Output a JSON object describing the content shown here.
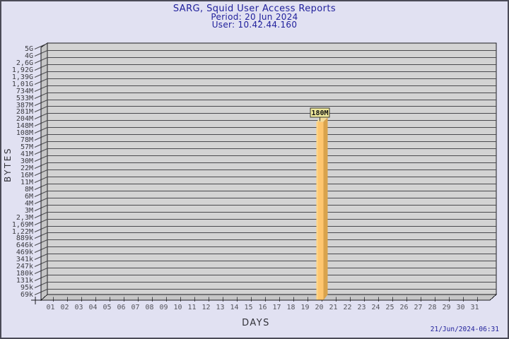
{
  "window": {
    "background": "#e1e1f2",
    "border_color": "#4b4b57"
  },
  "header": {
    "title": "SARG, Squid User Access Reports",
    "period": "Period: 20 Jun 2024",
    "user": "User: 10.42.44.160"
  },
  "footer": {
    "timestamp": "21/Jun/2024-06:31"
  },
  "chart_data": {
    "type": "bar",
    "title": "SARG, Squid User Access Reports",
    "subtitle": [
      "Period: 20 Jun 2024",
      "User: 10.42.44.160"
    ],
    "xlabel": "DAYS",
    "ylabel": "BYTES",
    "y_scale": "log",
    "grid": "horizontal",
    "legend": "none",
    "x_categories": [
      "01",
      "02",
      "03",
      "04",
      "05",
      "06",
      "07",
      "08",
      "09",
      "10",
      "11",
      "12",
      "13",
      "14",
      "15",
      "16",
      "17",
      "18",
      "19",
      "20",
      "21",
      "22",
      "23",
      "24",
      "25",
      "26",
      "27",
      "28",
      "29",
      "30",
      "31"
    ],
    "y_tick_labels": [
      "5G",
      "4G",
      "2,6G",
      "1,92G",
      "1,39G",
      "1,01G",
      "734M",
      "533M",
      "387M",
      "281M",
      "204M",
      "148M",
      "108M",
      "78M",
      "57M",
      "41M",
      "30M",
      "22M",
      "16M",
      "11M",
      "8M",
      "6M",
      "4M",
      "3M",
      "2,3M",
      "1,69M",
      "1,22M",
      "889k",
      "646k",
      "469k",
      "341k",
      "247k",
      "180k",
      "131k",
      "95k",
      "69k"
    ],
    "bars": [
      {
        "category": "20",
        "label": "180M"
      }
    ]
  },
  "style": {
    "panel_fill": "#d3d3d3",
    "side_fill": "#c6c6c6",
    "grid_color": "#4a4a4e",
    "axis_color": "#1c1c20",
    "bar_front": "#fec66f",
    "bar_left_highlight": "#ffd486",
    "bar_top": "#f4dc9a",
    "bar_side": "#d9a34c",
    "value_box_fill": "#ede79a",
    "value_box_border": "#3a3a30"
  }
}
